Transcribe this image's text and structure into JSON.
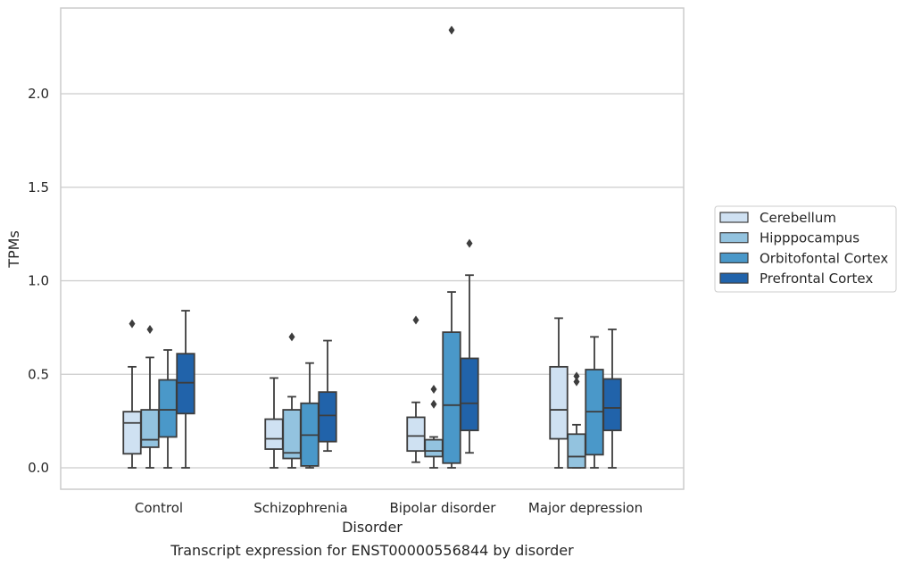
{
  "chart_data": {
    "type": "box",
    "title": "",
    "caption": "Transcript expression for ENST00000556844 by disorder",
    "xlabel": "Disorder",
    "ylabel": "TPMs",
    "ylim": [
      -0.11,
      2.46
    ],
    "yticks": [
      "0.0",
      "0.5",
      "1.0",
      "1.5",
      "2.0"
    ],
    "grid": "horizontal",
    "legend_position": "right",
    "categories": [
      "Control",
      "Schizophrenia",
      "Bipolar disorder",
      "Major depression"
    ],
    "series": [
      {
        "name": "Cerebellum",
        "color": "#cfe1f2",
        "boxes": [
          {
            "whisker_low": 0.0,
            "q1": 0.075,
            "median": 0.24,
            "q3": 0.3,
            "whisker_high": 0.54,
            "outliers": [
              0.77
            ]
          },
          {
            "whisker_low": 0.0,
            "q1": 0.1,
            "median": 0.155,
            "q3": 0.26,
            "whisker_high": 0.48,
            "outliers": []
          },
          {
            "whisker_low": 0.03,
            "q1": 0.09,
            "median": 0.17,
            "q3": 0.27,
            "whisker_high": 0.35,
            "outliers": [
              0.79
            ]
          },
          {
            "whisker_low": 0.0,
            "q1": 0.155,
            "median": 0.31,
            "q3": 0.54,
            "whisker_high": 0.8,
            "outliers": []
          }
        ]
      },
      {
        "name": "Hipppocampus",
        "color": "#93c3df",
        "boxes": [
          {
            "whisker_low": 0.0,
            "q1": 0.11,
            "median": 0.15,
            "q3": 0.31,
            "whisker_high": 0.59,
            "outliers": [
              0.74
            ]
          },
          {
            "whisker_low": 0.0,
            "q1": 0.05,
            "median": 0.08,
            "q3": 0.31,
            "whisker_high": 0.38,
            "outliers": [
              0.7
            ]
          },
          {
            "whisker_low": 0.0,
            "q1": 0.06,
            "median": 0.09,
            "q3": 0.15,
            "whisker_high": 0.165,
            "outliers": [
              0.34,
              0.42
            ]
          },
          {
            "whisker_low": 0.0,
            "q1": 0.0,
            "median": 0.06,
            "q3": 0.18,
            "whisker_high": 0.23,
            "outliers": [
              0.46,
              0.49
            ]
          }
        ]
      },
      {
        "name": "Orbitofontal Cortex",
        "color": "#4a98c9",
        "boxes": [
          {
            "whisker_low": 0.0,
            "q1": 0.165,
            "median": 0.31,
            "q3": 0.47,
            "whisker_high": 0.63,
            "outliers": []
          },
          {
            "whisker_low": 0.0,
            "q1": 0.01,
            "median": 0.175,
            "q3": 0.345,
            "whisker_high": 0.56,
            "outliers": []
          },
          {
            "whisker_low": 0.0,
            "q1": 0.025,
            "median": 0.335,
            "q3": 0.725,
            "whisker_high": 0.94,
            "outliers": [
              2.34
            ]
          },
          {
            "whisker_low": 0.0,
            "q1": 0.07,
            "median": 0.3,
            "q3": 0.525,
            "whisker_high": 0.7,
            "outliers": []
          }
        ]
      },
      {
        "name": "Prefrontal Cortex",
        "color": "#2163aa",
        "boxes": [
          {
            "whisker_low": 0.0,
            "q1": 0.29,
            "median": 0.455,
            "q3": 0.61,
            "whisker_high": 0.84,
            "outliers": []
          },
          {
            "whisker_low": 0.09,
            "q1": 0.14,
            "median": 0.28,
            "q3": 0.405,
            "whisker_high": 0.68,
            "outliers": []
          },
          {
            "whisker_low": 0.08,
            "q1": 0.2,
            "median": 0.345,
            "q3": 0.585,
            "whisker_high": 1.03,
            "outliers": [
              1.2
            ]
          },
          {
            "whisker_low": 0.0,
            "q1": 0.2,
            "median": 0.32,
            "q3": 0.475,
            "whisker_high": 0.74,
            "outliers": []
          }
        ]
      }
    ]
  }
}
